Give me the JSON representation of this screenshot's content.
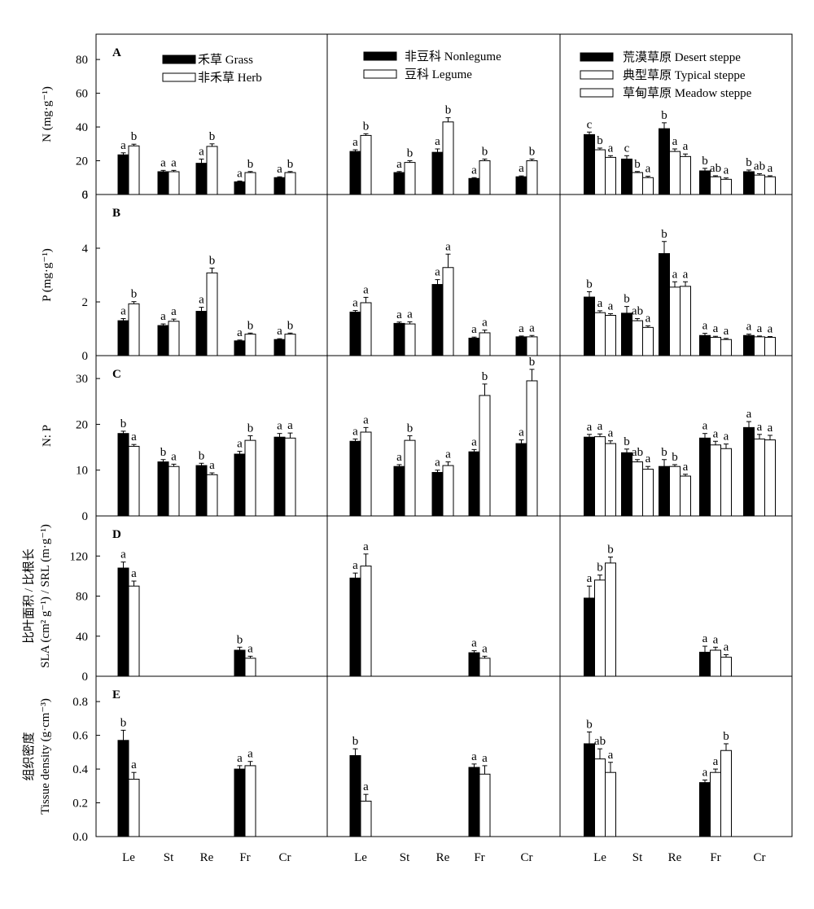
{
  "chart_data": {
    "type": "bar",
    "categories": [
      "Le",
      "St",
      "Re",
      "Fr",
      "Cr"
    ],
    "columns": [
      {
        "legend": [
          {
            "label": "禾草 Grass",
            "color": "#000000"
          },
          {
            "label": "非禾草 Herb",
            "color": "#ffffff"
          }
        ]
      },
      {
        "legend": [
          {
            "label": "非豆科  Nonlegume",
            "color": "#000000"
          },
          {
            "label": "豆科 Legume",
            "color": "#ffffff"
          }
        ]
      },
      {
        "legend": [
          {
            "label": "荒漠草原 Desert steppe",
            "color": "#000000"
          },
          {
            "label": "典型草原 Typical steppe",
            "color": "#ffffff"
          },
          {
            "label": "草甸草原 Meadow steppe",
            "color": "#ffffff"
          }
        ]
      }
    ],
    "rows": [
      {
        "letter": "A",
        "ylabel": "N (mg·g⁻¹)",
        "ylim": [
          0,
          95
        ],
        "ticks": [
          0,
          20,
          40,
          60,
          80
        ],
        "panels": [
          [
            [
              [
                23.5,
                1.2,
                "a"
              ],
              [
                28.8,
                1.0,
                "b"
              ]
            ],
            [
              [
                13.5,
                0.8,
                "a"
              ],
              [
                13.5,
                0.8,
                "a"
              ]
            ],
            [
              [
                18.5,
                2.5,
                "a"
              ],
              [
                28.5,
                1.5,
                "b"
              ]
            ],
            [
              [
                7.5,
                0.5,
                "a"
              ],
              [
                13.0,
                0.6,
                "b"
              ]
            ],
            [
              [
                10.0,
                0.5,
                "a"
              ],
              [
                13.0,
                0.6,
                "b"
              ]
            ]
          ],
          [
            [
              [
                25.5,
                1.0,
                "a"
              ],
              [
                35.0,
                1.0,
                "b"
              ]
            ],
            [
              [
                13.0,
                0.6,
                "a"
              ],
              [
                19.0,
                1.0,
                "b"
              ]
            ],
            [
              [
                25.0,
                2.0,
                "a"
              ],
              [
                43.0,
                2.5,
                "b"
              ]
            ],
            [
              [
                9.5,
                0.5,
                "a"
              ],
              [
                20.0,
                1.0,
                "b"
              ]
            ],
            [
              [
                10.5,
                0.5,
                "a"
              ],
              [
                20.0,
                1.0,
                "b"
              ]
            ]
          ],
          [
            [
              [
                35.5,
                1.5,
                "c"
              ],
              [
                26.5,
                1.0,
                "b"
              ],
              [
                22.0,
                1.0,
                "a"
              ]
            ],
            [
              [
                21.0,
                2.0,
                "c"
              ],
              [
                13.0,
                0.6,
                "b"
              ],
              [
                10.0,
                0.8,
                "a"
              ]
            ],
            [
              [
                39.0,
                3.5,
                "b"
              ],
              [
                25.5,
                1.5,
                "a"
              ],
              [
                22.5,
                1.5,
                "a"
              ]
            ],
            [
              [
                14.0,
                1.5,
                "b"
              ],
              [
                10.5,
                0.6,
                "ab"
              ],
              [
                9.0,
                0.8,
                "a"
              ]
            ],
            [
              [
                13.5,
                1.0,
                "b"
              ],
              [
                11.5,
                0.8,
                "ab"
              ],
              [
                10.5,
                0.6,
                "a"
              ]
            ]
          ]
        ]
      },
      {
        "letter": "B",
        "ylabel": "P (mg·g⁻¹)",
        "ylim": [
          0,
          6.0
        ],
        "ticks": [
          0,
          2,
          4,
          6
        ],
        "panels": [
          [
            [
              [
                1.3,
                0.08,
                "a"
              ],
              [
                1.93,
                0.08,
                "b"
              ]
            ],
            [
              [
                1.12,
                0.06,
                "a"
              ],
              [
                1.28,
                0.08,
                "a"
              ]
            ],
            [
              [
                1.65,
                0.15,
                "a"
              ],
              [
                3.08,
                0.18,
                "b"
              ]
            ],
            [
              [
                0.55,
                0.03,
                "a"
              ],
              [
                0.8,
                0.04,
                "b"
              ]
            ],
            [
              [
                0.6,
                0.03,
                "a"
              ],
              [
                0.8,
                0.04,
                "b"
              ]
            ]
          ],
          [
            [
              [
                1.62,
                0.06,
                "a"
              ],
              [
                1.97,
                0.2,
                "a"
              ]
            ],
            [
              [
                1.2,
                0.05,
                "a"
              ],
              [
                1.18,
                0.08,
                "a"
              ]
            ],
            [
              [
                2.65,
                0.18,
                "a"
              ],
              [
                3.28,
                0.5,
                "a"
              ]
            ],
            [
              [
                0.65,
                0.04,
                "a"
              ],
              [
                0.85,
                0.1,
                "a"
              ]
            ],
            [
              [
                0.7,
                0.03,
                "a"
              ],
              [
                0.7,
                0.05,
                "a"
              ]
            ]
          ],
          [
            [
              [
                2.18,
                0.2,
                "b"
              ],
              [
                1.6,
                0.07,
                "a"
              ],
              [
                1.5,
                0.06,
                "a"
              ]
            ],
            [
              [
                1.58,
                0.25,
                "b"
              ],
              [
                1.3,
                0.08,
                "ab"
              ],
              [
                1.05,
                0.06,
                "a"
              ]
            ],
            [
              [
                3.8,
                0.45,
                "b"
              ],
              [
                2.55,
                0.2,
                "a"
              ],
              [
                2.58,
                0.17,
                "a"
              ]
            ],
            [
              [
                0.75,
                0.08,
                "a"
              ],
              [
                0.68,
                0.04,
                "a"
              ],
              [
                0.6,
                0.04,
                "a"
              ]
            ],
            [
              [
                0.75,
                0.05,
                "a"
              ],
              [
                0.7,
                0.03,
                "a"
              ],
              [
                0.68,
                0.03,
                "a"
              ]
            ]
          ]
        ]
      },
      {
        "letter": "C",
        "ylabel": "N: P",
        "ylim": [
          0,
          35
        ],
        "ticks": [
          0,
          10,
          20,
          30
        ],
        "panels": [
          [
            [
              [
                18.0,
                0.5,
                "b"
              ],
              [
                15.2,
                0.4,
                "a"
              ]
            ],
            [
              [
                11.8,
                0.5,
                "b"
              ],
              [
                10.8,
                0.5,
                "a"
              ]
            ],
            [
              [
                11.0,
                0.5,
                "b"
              ],
              [
                9.0,
                0.4,
                "a"
              ]
            ],
            [
              [
                13.5,
                0.6,
                "a"
              ],
              [
                16.5,
                1.0,
                "b"
              ]
            ],
            [
              [
                17.2,
                0.8,
                "a"
              ],
              [
                17.0,
                1.1,
                "a"
              ]
            ]
          ],
          [
            [
              [
                16.3,
                0.5,
                "a"
              ],
              [
                18.3,
                1.0,
                "a"
              ]
            ],
            [
              [
                10.8,
                0.4,
                "a"
              ],
              [
                16.5,
                1.0,
                "b"
              ]
            ],
            [
              [
                9.5,
                0.5,
                "a"
              ],
              [
                11.0,
                0.8,
                "a"
              ]
            ],
            [
              [
                14.0,
                0.5,
                "a"
              ],
              [
                26.3,
                2.5,
                "b"
              ]
            ],
            [
              [
                15.8,
                0.8,
                "a"
              ],
              [
                29.5,
                2.5,
                "b"
              ]
            ]
          ],
          [
            [
              [
                17.2,
                0.6,
                "a"
              ],
              [
                17.3,
                0.6,
                "a"
              ],
              [
                15.8,
                0.6,
                "a"
              ]
            ],
            [
              [
                13.8,
                0.8,
                "b"
              ],
              [
                11.8,
                0.5,
                "ab"
              ],
              [
                10.2,
                0.6,
                "a"
              ]
            ],
            [
              [
                10.8,
                1.5,
                "b"
              ],
              [
                10.8,
                0.4,
                "b"
              ],
              [
                8.7,
                0.4,
                "a"
              ]
            ],
            [
              [
                17.0,
                1.0,
                "a"
              ],
              [
                15.5,
                0.8,
                "a"
              ],
              [
                14.7,
                1.0,
                "a"
              ]
            ],
            [
              [
                19.3,
                1.3,
                "a"
              ],
              [
                16.8,
                1.0,
                "a"
              ],
              [
                16.6,
                1.0,
                "a"
              ]
            ]
          ]
        ]
      },
      {
        "letter": "D",
        "ylabel": "SLA (cm² g⁻¹) / SRL (m·g⁻¹)",
        "ylabel_cn": "比叶面积 / 比根长",
        "ylim": [
          0,
          160
        ],
        "ticks": [
          0,
          40,
          80,
          120
        ],
        "panels": [
          [
            [
              [
                108.0,
                6.0,
                "a"
              ],
              [
                90.0,
                5.0,
                "a"
              ]
            ],
            null,
            null,
            [
              [
                26.0,
                3.0,
                "b"
              ],
              [
                18.0,
                2.0,
                "a"
              ]
            ],
            null
          ],
          [
            [
              [
                98.0,
                5.0,
                "a"
              ],
              [
                110.0,
                12.0,
                "a"
              ]
            ],
            null,
            null,
            [
              [
                23.5,
                2.0,
                "a"
              ],
              [
                18.0,
                2.0,
                "a"
              ]
            ],
            null
          ],
          [
            [
              [
                78.0,
                12.0,
                "a"
              ],
              [
                96.0,
                5.0,
                "b"
              ],
              [
                113.0,
                6.0,
                "b"
              ]
            ],
            null,
            null,
            [
              [
                24.0,
                6.0,
                "a"
              ],
              [
                26.0,
                3.0,
                "a"
              ],
              [
                19.0,
                2.5,
                "a"
              ]
            ],
            null
          ]
        ]
      },
      {
        "letter": "E",
        "ylabel": "Tissue density (g·cm⁻³)",
        "ylabel_cn": "组织密度",
        "ylim": [
          0,
          0.95
        ],
        "ticks": [
          0,
          0.2,
          0.4,
          0.6,
          0.8
        ],
        "ticklabels": [
          "0.0",
          "0.2",
          "0.4",
          "0.6",
          "0.8"
        ],
        "panels": [
          [
            [
              [
                0.57,
                0.06,
                "b"
              ],
              [
                0.34,
                0.04,
                "a"
              ]
            ],
            null,
            null,
            [
              [
                0.4,
                0.02,
                "a"
              ],
              [
                0.42,
                0.025,
                "a"
              ]
            ],
            null
          ],
          [
            [
              [
                0.48,
                0.04,
                "b"
              ],
              [
                0.21,
                0.04,
                "a"
              ]
            ],
            null,
            null,
            [
              [
                0.41,
                0.02,
                "a"
              ],
              [
                0.37,
                0.05,
                "a"
              ]
            ],
            null
          ],
          [
            [
              [
                0.55,
                0.07,
                "b"
              ],
              [
                0.46,
                0.06,
                "ab"
              ],
              [
                0.38,
                0.06,
                "a"
              ]
            ],
            null,
            null,
            [
              [
                0.32,
                0.015,
                "a"
              ],
              [
                0.38,
                0.02,
                "a"
              ],
              [
                0.51,
                0.04,
                "b"
              ]
            ],
            null
          ]
        ]
      }
    ]
  }
}
